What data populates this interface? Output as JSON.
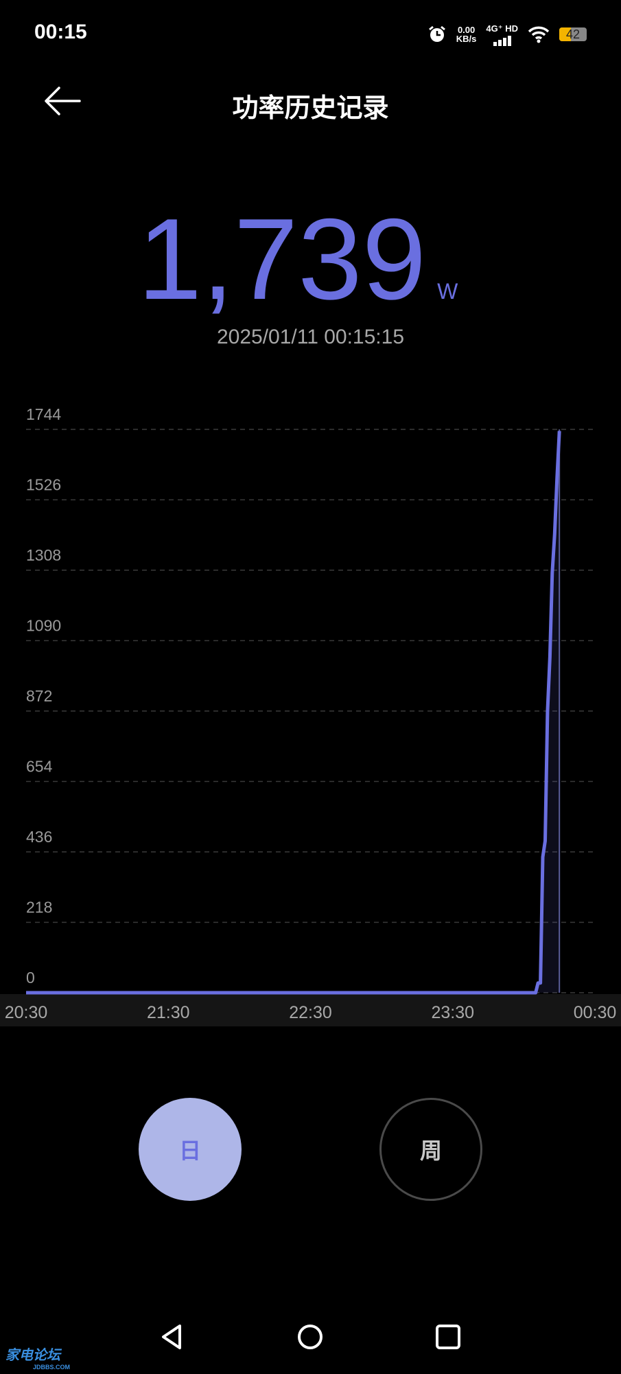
{
  "status_bar": {
    "time": "00:15",
    "net_speed_value": "0.00",
    "net_speed_unit": "KB/s",
    "network": "4G⁺ HD",
    "battery_level": 42,
    "battery_text": "42",
    "battery_color": "#f4b400",
    "icons": [
      "alarm-icon",
      "signal-icon",
      "wifi-icon",
      "battery-icon"
    ]
  },
  "header": {
    "back_icon": "arrow-left-icon",
    "title": "功率历史记录"
  },
  "reading": {
    "value": "1,739",
    "unit": "W",
    "timestamp": "2025/01/11 00:15:15",
    "accent_color": "#6a6fe0"
  },
  "chart_data": {
    "type": "line",
    "ylim": [
      0,
      1744
    ],
    "yticks": [
      "1744",
      "1526",
      "1308",
      "1090",
      "872",
      "654",
      "436",
      "218",
      "0"
    ],
    "xticks": [
      "20:30",
      "21:30",
      "22:30",
      "23:30",
      "00:30"
    ],
    "grid": true,
    "line_color": "#6a6fe0",
    "cursor_time": "00:15",
    "points": [
      {
        "t": "20:30",
        "v": 0
      },
      {
        "t": "00:05",
        "v": 0
      },
      {
        "t": "00:06",
        "v": 30
      },
      {
        "t": "00:07",
        "v": 30
      },
      {
        "t": "00:08",
        "v": 420
      },
      {
        "t": "00:09",
        "v": 470
      },
      {
        "t": "00:10",
        "v": 870
      },
      {
        "t": "00:11",
        "v": 1040
      },
      {
        "t": "00:12",
        "v": 1300
      },
      {
        "t": "00:13",
        "v": 1420
      },
      {
        "t": "00:14",
        "v": 1590
      },
      {
        "t": "00:15",
        "v": 1739
      }
    ]
  },
  "period_buttons": {
    "day": "日",
    "week": "周",
    "selected": "day"
  },
  "watermark": {
    "text": "家电论坛",
    "sub": "JDBBS.COM"
  }
}
